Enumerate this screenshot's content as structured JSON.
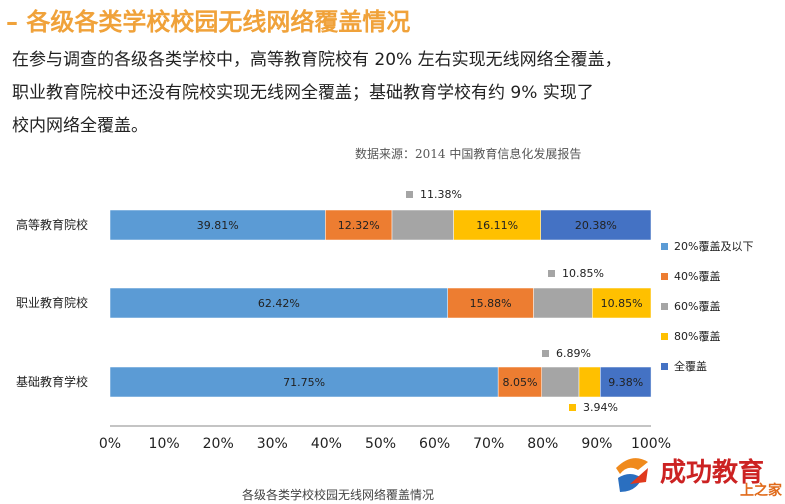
{
  "page": {
    "heading": "– 各级各类学校校园无线网络覆盖情况",
    "paragraph_lines": [
      "在参与调查的各级各类学校中，高等教育院校有 20% 左右实现无线网络全覆盖，",
      "职业教育院校中还没有院校实现无线网全覆盖；基础教育学校有约 9% 实现了",
      "校内网络全覆盖。"
    ],
    "source": "数据来源：2014 中国教育信息化发展报告",
    "caption": "各级各类学校校园无线网络覆盖情况",
    "watermark": "成功教育",
    "watermark_sub": "上之家"
  },
  "chart_data": {
    "type": "bar",
    "orientation": "horizontal",
    "stacked": true,
    "categories": [
      "高等教育院校",
      "职业教育院校",
      "基础教育学校"
    ],
    "series": [
      {
        "name": "20%覆盖及以下",
        "color": "#5b9bd5",
        "values": [
          39.81,
          62.42,
          71.75
        ],
        "labels": [
          "39.81%",
          "62.42%",
          "71.75%"
        ]
      },
      {
        "name": "40%覆盖",
        "color": "#ed7d31",
        "values": [
          12.32,
          15.88,
          8.05
        ],
        "labels": [
          "12.32%",
          "15.88%",
          "8.05%"
        ]
      },
      {
        "name": "60%覆盖",
        "color": "#a5a5a5",
        "values": [
          11.38,
          10.85,
          6.89
        ],
        "labels": [
          "11.38%",
          "10.85%",
          "6.89%"
        ]
      },
      {
        "name": "80%覆盖",
        "color": "#ffc000",
        "values": [
          16.11,
          10.85,
          3.94
        ],
        "labels": [
          "16.11%",
          "10.85%",
          "3.94%"
        ]
      },
      {
        "name": "全覆盖",
        "color": "#4472c4",
        "values": [
          20.38,
          0,
          9.38
        ],
        "labels": [
          "20.38%",
          "",
          "9.38%"
        ]
      }
    ],
    "x_ticks": [
      "0%",
      "10%",
      "20%",
      "30%",
      "40%",
      "50%",
      "60%",
      "70%",
      "80%",
      "90%",
      "100%"
    ],
    "xlim": [
      0,
      100
    ],
    "legend_position": "right"
  }
}
